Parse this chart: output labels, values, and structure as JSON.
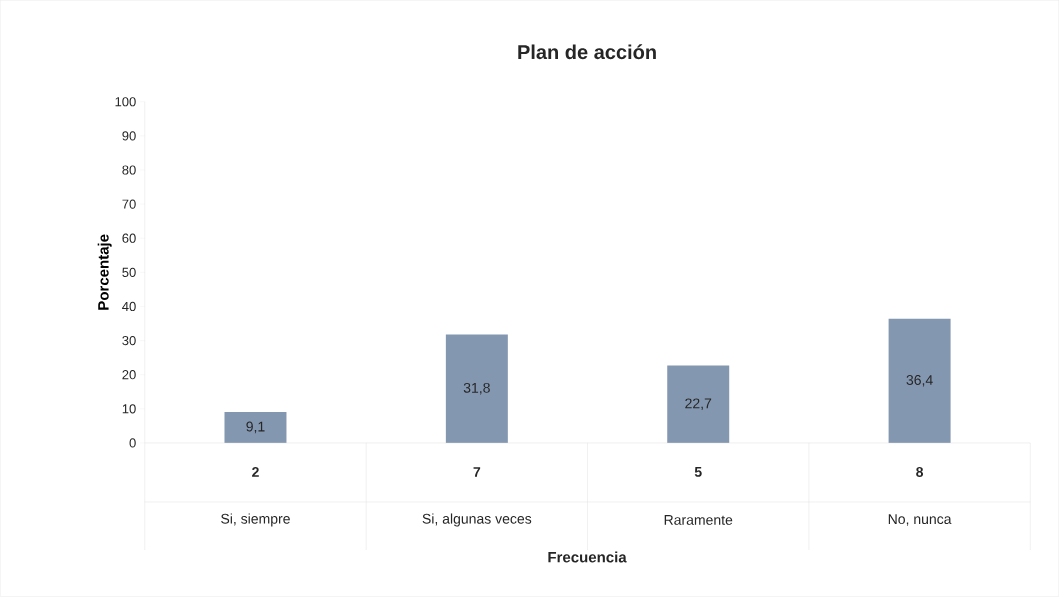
{
  "chart_data": {
    "type": "bar",
    "title": "Plan de acción",
    "xlabel": "Frecuencia",
    "ylabel": "Porcentaje",
    "categories": [
      "Si, siempre",
      "Si, algunas veces",
      "Raramente",
      "No, nunca"
    ],
    "values": [
      9.1,
      31.8,
      22.7,
      36.4
    ],
    "value_labels": [
      "9,1",
      "31,8",
      "22,7",
      "36,4"
    ],
    "annotations": [
      "2",
      "7",
      "5",
      "8"
    ],
    "color": "#8497b0",
    "ylim": [
      0,
      100
    ],
    "yticks": [
      0,
      10,
      20,
      30,
      40,
      50,
      60,
      70,
      80,
      90,
      100
    ]
  }
}
